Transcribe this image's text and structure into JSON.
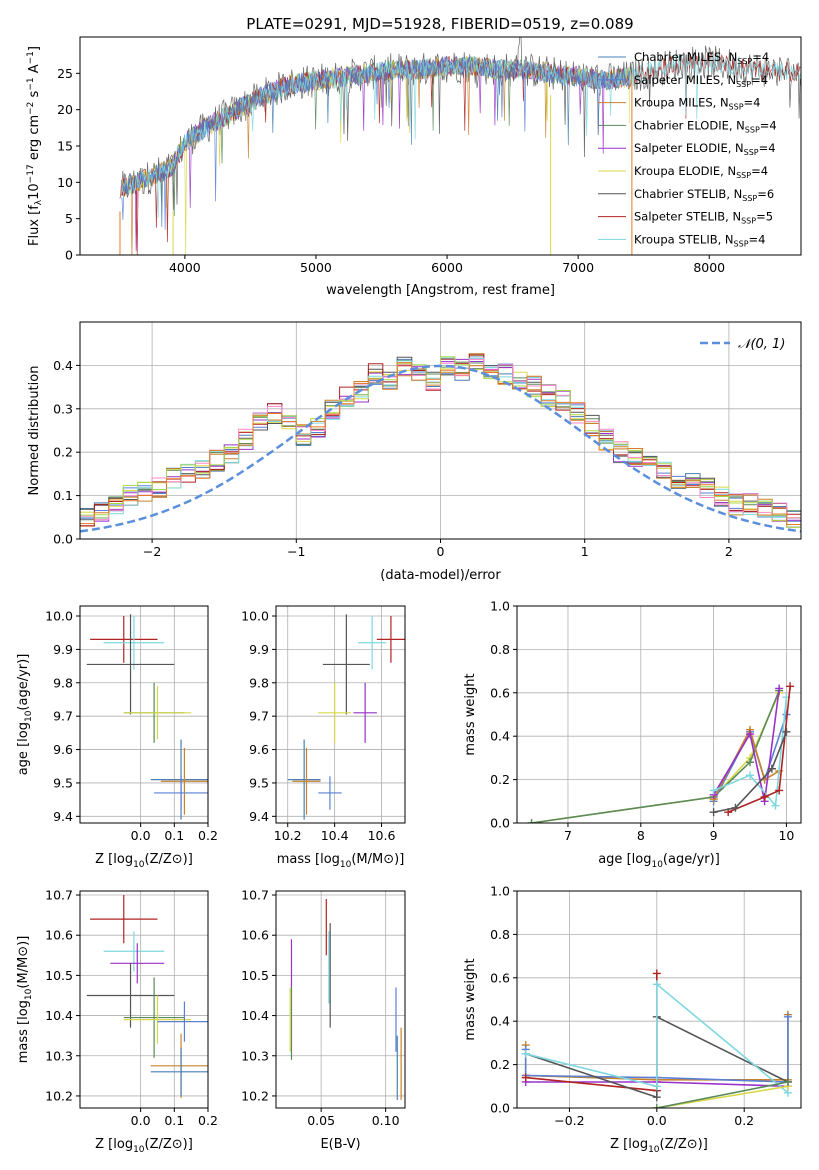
{
  "title": "PLATE=0291, MJD=51928, FIBERID=0519, z=0.089",
  "colors": {
    "Chabrier MILES": "#4a7fb5",
    "Salpeter MILES": "#5b7fd4",
    "Kroupa MILES": "#c8822a",
    "Chabrier ELODIE": "#5a8a5a",
    "Salpeter ELODIE": "#9932c8",
    "Kroupa ELODIE": "#d8d84a",
    "Chabrier STELIB": "#555555",
    "Salpeter STELIB": "#b22222",
    "Kroupa STELIB": "#7fd8e0",
    "pink": "#ff88cc",
    "orange": "#e07b28",
    "lime": "#a8d84a",
    "gauss": "#5b8fdd",
    "grid": "#b0b0b0"
  },
  "chart_data": [
    {
      "id": "spectrum",
      "type": "line",
      "xlabel": "wavelength [Angstrom, rest frame]",
      "ylabel_text": "Flux [f",
      "xlim": [
        3200,
        8700
      ],
      "ylim": [
        0,
        30
      ],
      "xticks": [
        4000,
        5000,
        6000,
        7000,
        8000
      ],
      "yticks": [
        0,
        5,
        10,
        15,
        20,
        25
      ],
      "legend_position": "right",
      "series": [
        {
          "name": "Chabrier MILES, N_SSP=4",
          "nssp": "4",
          "label": "Chabrier MILES, N"
        },
        {
          "name": "Salpeter MILES, N_SSP=4",
          "nssp": "4",
          "label": "Salpeter MILES, N"
        },
        {
          "name": "Kroupa MILES, N_SSP=4",
          "nssp": "4",
          "label": "Kroupa MILES, N"
        },
        {
          "name": "Chabrier ELODIE, N_SSP=4",
          "nssp": "4",
          "label": "Chabrier ELODIE, N"
        },
        {
          "name": "Salpeter ELODIE, N_SSP=4",
          "nssp": "4",
          "label": "Salpeter ELODIE, N"
        },
        {
          "name": "Kroupa ELODIE, N_SSP=4",
          "nssp": "4",
          "label": "Kroupa ELODIE, N"
        },
        {
          "name": "Chabrier STELIB, N_SSP=6",
          "nssp": "6",
          "label": "Chabrier STELIB, N"
        },
        {
          "name": "Salpeter STELIB, N_SSP=5",
          "nssp": "5",
          "label": "Salpeter STELIB, N"
        },
        {
          "name": "Kroupa STELIB, N_SSP=4",
          "nssp": "4",
          "label": "Kroupa STELIB, N"
        }
      ],
      "continuum": [
        [
          3500,
          9
        ],
        [
          3700,
          10.5
        ],
        [
          3900,
          12
        ],
        [
          4000,
          15.5
        ],
        [
          4200,
          18
        ],
        [
          4400,
          20
        ],
        [
          4600,
          22
        ],
        [
          4800,
          23.5
        ],
        [
          5000,
          24
        ],
        [
          5200,
          24.5
        ],
        [
          5400,
          25
        ],
        [
          5600,
          25.5
        ],
        [
          5800,
          25.5
        ],
        [
          6000,
          26
        ],
        [
          6200,
          26
        ],
        [
          6400,
          25.5
        ],
        [
          6600,
          25.5
        ],
        [
          6800,
          25
        ],
        [
          7000,
          24.5
        ],
        [
          7200,
          24
        ],
        [
          7400,
          24.5
        ],
        [
          7600,
          25.5
        ],
        [
          7800,
          26.5
        ],
        [
          8000,
          26.5
        ],
        [
          8200,
          26
        ],
        [
          8400,
          25.5
        ],
        [
          8700,
          25
        ]
      ]
    },
    {
      "id": "residuals",
      "type": "bar",
      "xlabel": "(data-model)/error",
      "ylabel": "Normed distribution",
      "xlim": [
        -2.5,
        2.5
      ],
      "ylim": [
        0,
        0.5
      ],
      "xticks": [
        -2,
        -1,
        0,
        1,
        2
      ],
      "yticks": [
        0.0,
        0.1,
        0.2,
        0.3,
        0.4
      ],
      "legend": "𝒩(0, 1)",
      "bin_width": 0.1,
      "hist_base": [
        0.02,
        0.03,
        0.04,
        0.05,
        0.05,
        0.05,
        0.06,
        0.08,
        0.1,
        0.11,
        0.12,
        0.14,
        0.15,
        0.16,
        0.18,
        0.2,
        0.23,
        0.27,
        0.29,
        0.27,
        0.24,
        0.26,
        0.3,
        0.33,
        0.34,
        0.38,
        0.37,
        0.4,
        0.38,
        0.36,
        0.4,
        0.39,
        0.41,
        0.39,
        0.38,
        0.36,
        0.35,
        0.33,
        0.32,
        0.29,
        0.26,
        0.23,
        0.2,
        0.19,
        0.17,
        0.16,
        0.14,
        0.13,
        0.12,
        0.1,
        0.08,
        0.08,
        0.07,
        0.06,
        0.05,
        0.04,
        0.04,
        0.03,
        0.03,
        0.03
      ]
    },
    {
      "id": "age_vs_Z",
      "type": "scatter",
      "xlabel": "Z [log",
      "ylabel": "age  [log",
      "xlim": [
        -0.18,
        0.2
      ],
      "ylim": [
        9.38,
        10.03
      ],
      "xticks": [
        0.0,
        0.1,
        0.2
      ],
      "yticks": [
        9.4,
        9.5,
        9.6,
        9.7,
        9.8,
        9.9,
        10.0
      ],
      "points": [
        {
          "series": "Salpeter STELIB",
          "x": -0.05,
          "xerr": 0.1,
          "y": 9.93,
          "yerr": 0.07
        },
        {
          "series": "Kroupa STELIB",
          "x": -0.02,
          "xerr": 0.09,
          "y": 9.92,
          "yerr": 0.08
        },
        {
          "series": "Chabrier STELIB",
          "x": -0.03,
          "xerr": 0.13,
          "y": 9.855,
          "yerr": 0.15
        },
        {
          "series": "Chabrier ELODIE",
          "x": 0.04,
          "xerr": 0.09,
          "y": 9.71,
          "yerr": 0.09
        },
        {
          "series": "Kroupa ELODIE",
          "x": 0.05,
          "xerr": 0.1,
          "y": 9.71,
          "yerr": 0.08
        },
        {
          "series": "Chabrier MILES",
          "x": 0.12,
          "xerr": 0.09,
          "y": 9.51,
          "yerr": 0.12
        },
        {
          "series": "Kroupa MILES",
          "x": 0.13,
          "xerr": 0.07,
          "y": 9.505,
          "yerr": 0.1
        },
        {
          "series": "Salpeter MILES",
          "x": 0.12,
          "xerr": 0.08,
          "y": 9.47,
          "yerr": 0.05
        }
      ]
    },
    {
      "id": "age_vs_mass",
      "type": "scatter",
      "xlabel": "mass [log",
      "xlim": [
        10.15,
        10.7
      ],
      "ylim": [
        9.38,
        10.03
      ],
      "xticks": [
        10.2,
        10.4,
        10.6
      ],
      "yticks": [
        9.4,
        9.5,
        9.6,
        9.7,
        9.8,
        9.9,
        10.0
      ],
      "points": [
        {
          "series": "Salpeter STELIB",
          "x": 10.64,
          "xerr": 0.06,
          "y": 9.93,
          "yerr": 0.07
        },
        {
          "series": "Kroupa STELIB",
          "x": 10.56,
          "xerr": 0.06,
          "y": 9.92,
          "yerr": 0.08
        },
        {
          "series": "Chabrier STELIB",
          "x": 10.45,
          "xerr": 0.1,
          "y": 9.855,
          "yerr": 0.15
        },
        {
          "series": "Salpeter ELODIE",
          "x": 10.53,
          "xerr": 0.05,
          "y": 9.71,
          "yerr": 0.09
        },
        {
          "series": "Kroupa ELODIE",
          "x": 10.4,
          "xerr": 0.07,
          "y": 9.71,
          "yerr": 0.09
        },
        {
          "series": "Chabrier MILES",
          "x": 10.27,
          "xerr": 0.07,
          "y": 9.51,
          "yerr": 0.12
        },
        {
          "series": "Kroupa MILES",
          "x": 10.28,
          "xerr": 0.06,
          "y": 9.505,
          "yerr": 0.1
        },
        {
          "series": "Salpeter MILES",
          "x": 10.38,
          "xerr": 0.05,
          "y": 9.47,
          "yerr": 0.05
        }
      ]
    },
    {
      "id": "massweight_vs_age",
      "type": "line",
      "xlabel": "age  [log",
      "ylabel": "mass weight",
      "xlim": [
        6.3,
        10.2
      ],
      "ylim": [
        0,
        1.0
      ],
      "xticks": [
        7,
        8,
        9,
        10
      ],
      "yticks": [
        0.0,
        0.2,
        0.4,
        0.6,
        0.8,
        1.0
      ],
      "lines": [
        {
          "series": "Kroupa ELODIE",
          "pts": [
            [
              6.5,
              0.0
            ],
            [
              9.0,
              0.12
            ],
            [
              9.5,
              0.3
            ],
            [
              9.9,
              0.6
            ]
          ]
        },
        {
          "series": "Chabrier ELODIE",
          "pts": [
            [
              6.5,
              0.0
            ],
            [
              9.0,
              0.12
            ],
            [
              9.5,
              0.28
            ],
            [
              9.9,
              0.61
            ]
          ]
        },
        {
          "series": "Salpeter MILES",
          "pts": [
            [
              9.0,
              0.1
            ],
            [
              9.5,
              0.42
            ],
            [
              9.7,
              0.2
            ],
            [
              10.0,
              0.5
            ]
          ]
        },
        {
          "series": "Kroupa MILES",
          "pts": [
            [
              9.0,
              0.11
            ],
            [
              9.5,
              0.43
            ],
            [
              9.7,
              0.2
            ],
            [
              9.9,
              0.24
            ]
          ]
        },
        {
          "series": "Salpeter ELODIE",
          "pts": [
            [
              9.0,
              0.13
            ],
            [
              9.5,
              0.41
            ],
            [
              9.7,
              0.1
            ],
            [
              9.9,
              0.62
            ]
          ]
        },
        {
          "series": "Kroupa STELIB",
          "pts": [
            [
              9.0,
              0.15
            ],
            [
              9.5,
              0.22
            ],
            [
              9.85,
              0.08
            ],
            [
              10.0,
              0.58
            ]
          ]
        },
        {
          "series": "Salpeter STELIB",
          "pts": [
            [
              9.2,
              0.05
            ],
            [
              9.7,
              0.12
            ],
            [
              9.9,
              0.15
            ],
            [
              10.05,
              0.63
            ]
          ]
        },
        {
          "series": "Chabrier STELIB",
          "pts": [
            [
              9.0,
              0.05
            ],
            [
              9.3,
              0.07
            ],
            [
              9.8,
              0.25
            ],
            [
              10.0,
              0.42
            ]
          ]
        }
      ]
    },
    {
      "id": "mass_vs_Z",
      "type": "scatter",
      "xlabel": "Z [log",
      "ylabel": "mass [log",
      "xlim": [
        -0.18,
        0.2
      ],
      "ylim": [
        10.17,
        10.71
      ],
      "xticks": [
        0.0,
        0.1,
        0.2
      ],
      "yticks": [
        10.2,
        10.3,
        10.4,
        10.5,
        10.6,
        10.7
      ],
      "points": [
        {
          "series": "Salpeter STELIB",
          "x": -0.05,
          "xerr": 0.1,
          "y": 10.64,
          "yerr": 0.06
        },
        {
          "series": "Kroupa STELIB",
          "x": -0.02,
          "xerr": 0.09,
          "y": 10.56,
          "yerr": 0.05
        },
        {
          "series": "Salpeter ELODIE",
          "x": -0.01,
          "xerr": 0.08,
          "y": 10.53,
          "yerr": 0.05
        },
        {
          "series": "Chabrier STELIB",
          "x": -0.03,
          "xerr": 0.13,
          "y": 10.45,
          "yerr": 0.08
        },
        {
          "series": "Chabrier ELODIE",
          "x": 0.04,
          "xerr": 0.09,
          "y": 10.395,
          "yerr": 0.1
        },
        {
          "series": "Kroupa ELODIE",
          "x": 0.05,
          "xerr": 0.1,
          "y": 10.39,
          "yerr": 0.06
        },
        {
          "series": "Salpeter MILES",
          "x": 0.13,
          "xerr": 0.08,
          "y": 10.385,
          "yerr": 0.05
        },
        {
          "series": "Kroupa MILES",
          "x": 0.12,
          "xerr": 0.09,
          "y": 10.275,
          "yerr": 0.08
        },
        {
          "series": "Chabrier MILES",
          "x": 0.12,
          "xerr": 0.09,
          "y": 10.26,
          "yerr": 0.06
        }
      ]
    },
    {
      "id": "mass_vs_ebv",
      "type": "scatter",
      "xlabel": "E(B-V)",
      "xlim": [
        0.015,
        0.115
      ],
      "ylim": [
        10.17,
        10.71
      ],
      "xticks": [
        0.05,
        0.1
      ],
      "yticks": [
        10.2,
        10.3,
        10.4,
        10.5,
        10.6,
        10.7
      ],
      "points": [
        {
          "series": "Salpeter ELODIE",
          "x": 0.027,
          "y": 10.53,
          "yerr": 0.06
        },
        {
          "series": "Kroupa ELODIE",
          "x": 0.026,
          "y": 10.39,
          "yerr": 0.08
        },
        {
          "series": "Chabrier ELODIE",
          "x": 0.027,
          "y": 10.38,
          "yerr": 0.09
        },
        {
          "series": "Salpeter STELIB",
          "x": 0.054,
          "y": 10.62,
          "yerr": 0.07
        },
        {
          "series": "Chabrier STELIB",
          "x": 0.057,
          "y": 10.5,
          "yerr": 0.13
        },
        {
          "series": "Kroupa STELIB",
          "x": 0.056,
          "y": 10.52,
          "yerr": 0.09
        },
        {
          "series": "Salpeter MILES",
          "x": 0.108,
          "y": 10.39,
          "yerr": 0.08
        },
        {
          "series": "Chabrier MILES",
          "x": 0.109,
          "y": 10.27,
          "yerr": 0.08
        },
        {
          "series": "Kroupa MILES",
          "x": 0.112,
          "y": 10.28,
          "yerr": 0.09
        }
      ]
    },
    {
      "id": "massweight_vs_Z",
      "type": "line",
      "xlabel": "Z [log",
      "ylabel": "mass weight",
      "xlim": [
        -0.32,
        0.33
      ],
      "ylim": [
        0,
        1.0
      ],
      "xticks": [
        -0.2,
        0.0,
        0.2
      ],
      "yticks": [
        0.0,
        0.2,
        0.4,
        0.6,
        0.8,
        1.0
      ],
      "lines": [
        {
          "series": "Kroupa MILES",
          "pts": [
            [
              -0.3,
              0.29
            ],
            [
              -0.3,
              0.15
            ],
            [
              0.0,
              0.13
            ],
            [
              0.3,
              0.13
            ],
            [
              0.3,
              0.43
            ]
          ]
        },
        {
          "series": "Salpeter MILES",
          "pts": [
            [
              -0.3,
              0.27
            ],
            [
              -0.3,
              0.15
            ],
            [
              0.0,
              0.14
            ],
            [
              0.3,
              0.12
            ],
            [
              0.3,
              0.42
            ]
          ]
        },
        {
          "series": "Salpeter ELODIE",
          "pts": [
            [
              -0.3,
              0.12
            ],
            [
              0.0,
              0.12
            ],
            [
              0.3,
              0.1
            ]
          ]
        },
        {
          "series": "Salpeter STELIB",
          "pts": [
            [
              -0.3,
              0.14
            ],
            [
              0.0,
              0.08
            ],
            [
              0.0,
              0.62
            ]
          ]
        },
        {
          "series": "Chabrier STELIB",
          "pts": [
            [
              -0.3,
              0.25
            ],
            [
              0.0,
              0.05
            ],
            [
              0.0,
              0.42
            ],
            [
              0.3,
              0.12
            ]
          ]
        },
        {
          "series": "Kroupa STELIB",
          "pts": [
            [
              -0.3,
              0.25
            ],
            [
              0.0,
              0.1
            ],
            [
              0.0,
              0.57
            ],
            [
              0.3,
              0.07
            ]
          ]
        },
        {
          "series": "Kroupa ELODIE",
          "pts": [
            [
              0.0,
              0.0
            ],
            [
              0.3,
              0.1
            ]
          ]
        },
        {
          "series": "Chabrier ELODIE",
          "pts": [
            [
              0.0,
              0.0
            ],
            [
              0.3,
              0.12
            ]
          ]
        }
      ]
    }
  ]
}
